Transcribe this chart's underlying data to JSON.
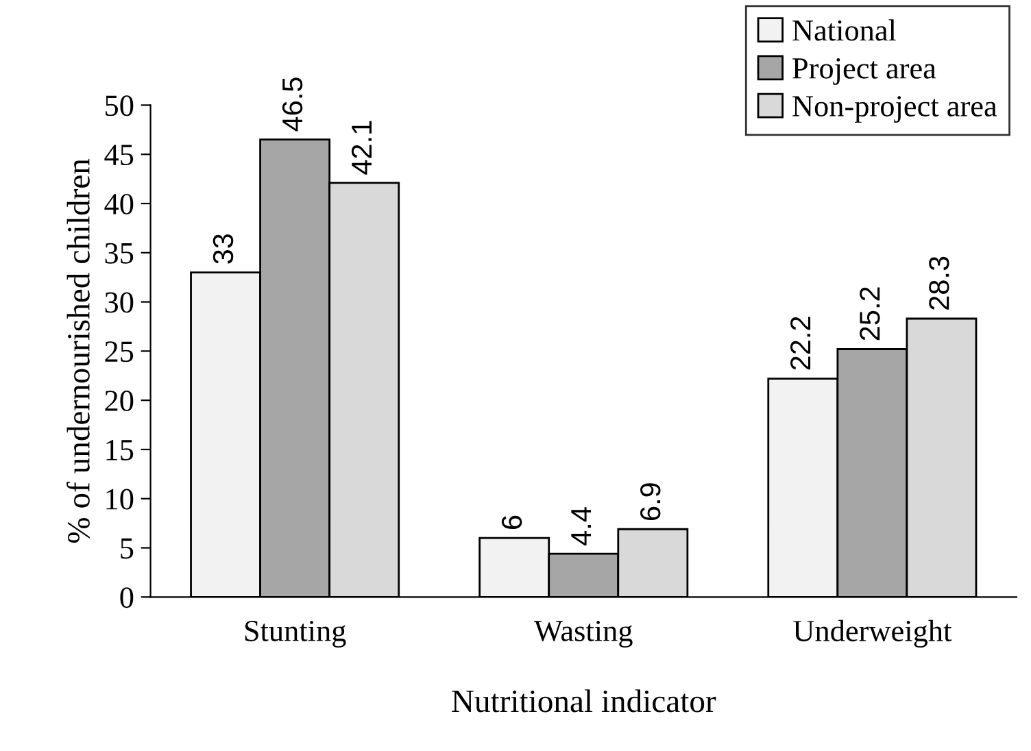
{
  "chart_data": {
    "type": "bar",
    "xlabel": "Nutritional indicator",
    "ylabel": "% of undernourished children",
    "categories": [
      "Stunting",
      "Wasting",
      "Underweight"
    ],
    "series": [
      {
        "name": "National",
        "color": "#f2f2f2",
        "values": [
          33,
          6,
          22.2
        ]
      },
      {
        "name": "Project area",
        "color": "#a6a6a6",
        "values": [
          46.5,
          4.4,
          25.2
        ]
      },
      {
        "name": "Non-project area",
        "color": "#d9d9d9",
        "values": [
          42.1,
          6.9,
          28.3
        ]
      }
    ],
    "ylim": [
      0,
      50
    ],
    "yticks": [
      0,
      5,
      10,
      15,
      20,
      25,
      30,
      35,
      40,
      45,
      50
    ],
    "data_labels": true,
    "grid": false,
    "legend": "top right"
  }
}
